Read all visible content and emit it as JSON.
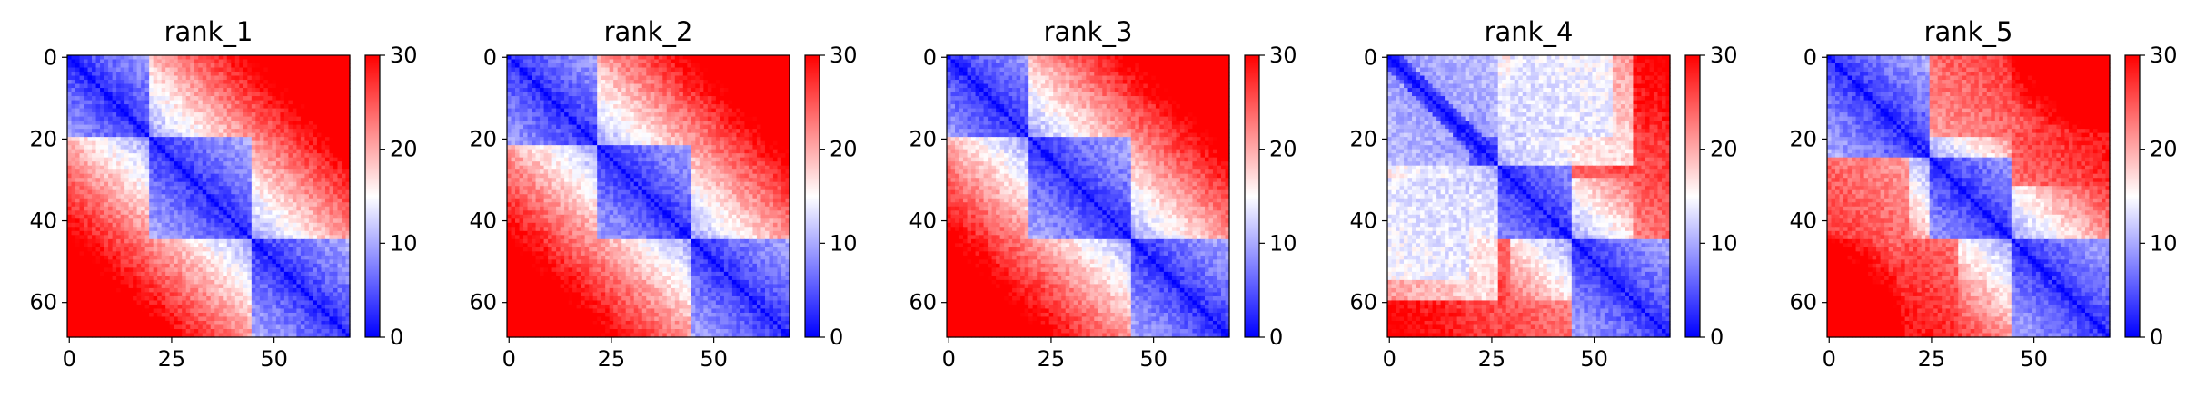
{
  "chart_data": [
    {
      "type": "heatmap",
      "title": "rank_1",
      "x_ticks": [
        "0",
        "25",
        "50"
      ],
      "y_ticks": [
        "0",
        "20",
        "40",
        "60"
      ],
      "colorbar_ticks": [
        "0",
        "10",
        "20",
        "30"
      ],
      "matrix_size": 69,
      "value_range": [
        0,
        30
      ],
      "colormap": "bwr",
      "colormap_stops": [
        "#0000ff",
        "#ffffff",
        "#ff0000"
      ],
      "domains": [
        [
          0,
          20
        ],
        [
          20,
          45
        ],
        [
          45,
          69
        ]
      ],
      "features": []
    },
    {
      "type": "heatmap",
      "title": "rank_2",
      "x_ticks": [
        "0",
        "25",
        "50"
      ],
      "y_ticks": [
        "0",
        "20",
        "40",
        "60"
      ],
      "colorbar_ticks": [
        "0",
        "10",
        "20",
        "30"
      ],
      "matrix_size": 69,
      "value_range": [
        0,
        30
      ],
      "colormap": "bwr",
      "colormap_stops": [
        "#0000ff",
        "#ffffff",
        "#ff0000"
      ],
      "domains": [
        [
          0,
          22
        ],
        [
          22,
          45
        ],
        [
          45,
          69
        ]
      ],
      "features": []
    },
    {
      "type": "heatmap",
      "title": "rank_3",
      "x_ticks": [
        "0",
        "25",
        "50"
      ],
      "y_ticks": [
        "0",
        "20",
        "40",
        "60"
      ],
      "colorbar_ticks": [
        "0",
        "10",
        "20",
        "30"
      ],
      "matrix_size": 69,
      "value_range": [
        0,
        30
      ],
      "colormap": "bwr",
      "colormap_stops": [
        "#0000ff",
        "#ffffff",
        "#ff0000"
      ],
      "domains": [
        [
          0,
          20
        ],
        [
          20,
          45
        ],
        [
          45,
          69
        ]
      ],
      "features": []
    },
    {
      "type": "heatmap",
      "title": "rank_4",
      "x_ticks": [
        "0",
        "25",
        "50"
      ],
      "y_ticks": [
        "0",
        "20",
        "40",
        "60"
      ],
      "colorbar_ticks": [
        "0",
        "10",
        "20",
        "30"
      ],
      "matrix_size": 69,
      "value_range": [
        0,
        30
      ],
      "colormap": "bwr",
      "colormap_stops": [
        "#0000ff",
        "#ffffff",
        "#ff0000"
      ],
      "domains": [
        [
          0,
          27
        ],
        [
          27,
          45
        ],
        [
          45,
          69
        ]
      ],
      "features": [
        {
          "rows": [
            0,
            20
          ],
          "cols": [
            0,
            55
          ],
          "value": 12
        },
        {
          "rows": [
            20,
            30
          ],
          "cols": [
            45,
            69
          ],
          "value": 27
        },
        {
          "rows": [
            30,
            60
          ],
          "cols": [
            0,
            27
          ],
          "value": 12
        },
        {
          "rows": [
            60,
            69
          ],
          "cols": [
            0,
            45
          ],
          "value": 25
        }
      ]
    },
    {
      "type": "heatmap",
      "title": "rank_5",
      "x_ticks": [
        "0",
        "25",
        "50"
      ],
      "y_ticks": [
        "0",
        "20",
        "40",
        "60"
      ],
      "colorbar_ticks": [
        "0",
        "10",
        "20",
        "30"
      ],
      "matrix_size": 69,
      "value_range": [
        0,
        30
      ],
      "colormap": "bwr",
      "colormap_stops": [
        "#0000ff",
        "#ffffff",
        "#ff0000"
      ],
      "domains": [
        [
          0,
          25
        ],
        [
          25,
          45
        ],
        [
          45,
          69
        ]
      ],
      "features": [
        {
          "rows": [
            18,
            32
          ],
          "cols": [
            45,
            69
          ],
          "value": 27
        },
        {
          "rows": [
            25,
            45
          ],
          "cols": [
            0,
            20
          ],
          "value": 25
        }
      ]
    }
  ]
}
